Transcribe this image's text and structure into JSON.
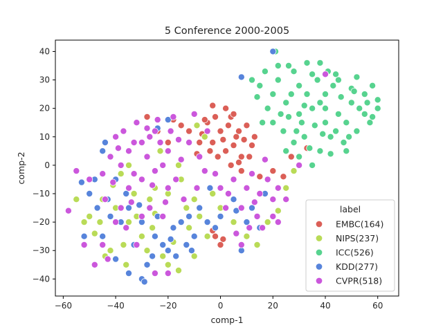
{
  "chart_data": {
    "type": "scatter",
    "title": "5 Conference 2000-2005",
    "xlabel": "comp-1",
    "ylabel": "comp-2",
    "xlim": [
      -63,
      68
    ],
    "ylim": [
      -46,
      44
    ],
    "xticks": [
      -60,
      -40,
      -20,
      0,
      20,
      40,
      60
    ],
    "yticks": [
      -40,
      -30,
      -20,
      -10,
      0,
      10,
      20,
      30,
      40
    ],
    "grid": false,
    "legend": {
      "title": "label",
      "placement": "lower-right"
    },
    "series": [
      {
        "name": "EMBC(164)",
        "color": "#db5f57",
        "points": [
          [
            -5,
            15
          ],
          [
            -3,
            8
          ],
          [
            0,
            12
          ],
          [
            2,
            5
          ],
          [
            4,
            17
          ],
          [
            6,
            10
          ],
          [
            8,
            3
          ],
          [
            -7,
            11
          ],
          [
            -2,
            17
          ],
          [
            3,
            14
          ],
          [
            5,
            7
          ],
          [
            7,
            12
          ],
          [
            9,
            9
          ],
          [
            -4,
            5
          ],
          [
            1,
            9
          ],
          [
            10,
            14
          ],
          [
            -6,
            16
          ],
          [
            2,
            20
          ],
          [
            12,
            7
          ],
          [
            -1,
            3
          ],
          [
            4,
            0
          ],
          [
            8,
            -2
          ],
          [
            15,
            -4
          ],
          [
            20,
            -2
          ],
          [
            24,
            -4
          ],
          [
            -12,
            12
          ],
          [
            -18,
            16
          ],
          [
            -24,
            12
          ],
          [
            -28,
            17
          ],
          [
            -20,
            8
          ],
          [
            -15,
            14
          ],
          [
            11,
            3
          ],
          [
            13,
            10
          ],
          [
            5,
            18
          ],
          [
            -8,
            8
          ],
          [
            33,
            6
          ],
          [
            27,
            3
          ],
          [
            -3,
            21
          ],
          [
            1,
            -26
          ],
          [
            -2,
            -25
          ],
          [
            0,
            -28
          ],
          [
            -5,
            -20
          ],
          [
            -3,
            -23
          ],
          [
            7,
            1
          ],
          [
            -9,
            4
          ]
        ]
      },
      {
        "name": "NIPS(237)",
        "color": "#b9db57",
        "points": [
          [
            -45,
            -12
          ],
          [
            -40,
            -15
          ],
          [
            -35,
            -20
          ],
          [
            -30,
            -25
          ],
          [
            -25,
            -8
          ],
          [
            -20,
            -10
          ],
          [
            -15,
            -5
          ],
          [
            -10,
            -12
          ],
          [
            -38,
            -3
          ],
          [
            -33,
            -10
          ],
          [
            -28,
            -30
          ],
          [
            -22,
            -32
          ],
          [
            -18,
            -27
          ],
          [
            -12,
            -22
          ],
          [
            -8,
            -18
          ],
          [
            -48,
            -24
          ],
          [
            -42,
            -30
          ],
          [
            -37,
            -28
          ],
          [
            -30,
            -5
          ],
          [
            -25,
            -17
          ],
          [
            -16,
            -37
          ],
          [
            -10,
            -32
          ],
          [
            -5,
            -25
          ],
          [
            -46,
            -20
          ],
          [
            -3,
            -10
          ],
          [
            0,
            -15
          ],
          [
            5,
            -20
          ],
          [
            10,
            -25
          ],
          [
            14,
            -28
          ],
          [
            -50,
            -18
          ],
          [
            -32,
            -18
          ],
          [
            -27,
            -12
          ],
          [
            -20,
            -35
          ],
          [
            -13,
            -15
          ],
          [
            -55,
            -12
          ],
          [
            -52,
            -20
          ],
          [
            -44,
            -32
          ],
          [
            28,
            -2
          ],
          [
            25,
            -8
          ],
          [
            -6,
            10
          ],
          [
            -9,
            14
          ],
          [
            18,
            -20
          ],
          [
            22,
            -16
          ],
          [
            -35,
            0
          ],
          [
            -23,
            5
          ],
          [
            -16,
            0
          ],
          [
            -41,
            -7
          ],
          [
            -36,
            -35
          ],
          [
            -26,
            -22
          ]
        ]
      },
      {
        "name": "ICC(526)",
        "color": "#57d38f",
        "points": [
          [
            22,
            30
          ],
          [
            26,
            35
          ],
          [
            30,
            28
          ],
          [
            35,
            32
          ],
          [
            40,
            25
          ],
          [
            45,
            30
          ],
          [
            50,
            27
          ],
          [
            55,
            25
          ],
          [
            60,
            23
          ],
          [
            25,
            22
          ],
          [
            30,
            18
          ],
          [
            35,
            20
          ],
          [
            40,
            15
          ],
          [
            45,
            18
          ],
          [
            50,
            22
          ],
          [
            55,
            18
          ],
          [
            24,
            12
          ],
          [
            28,
            8
          ],
          [
            32,
            10
          ],
          [
            36,
            14
          ],
          [
            42,
            10
          ],
          [
            47,
            8
          ],
          [
            52,
            12
          ],
          [
            57,
            15
          ],
          [
            20,
            25
          ],
          [
            18,
            20
          ],
          [
            15,
            28
          ],
          [
            12,
            30
          ],
          [
            20,
            15
          ],
          [
            25,
            5
          ],
          [
            30,
            3
          ],
          [
            38,
            5
          ],
          [
            42,
            4
          ],
          [
            48,
            5
          ],
          [
            53,
            20
          ],
          [
            58,
            28
          ],
          [
            60,
            20
          ],
          [
            33,
            25
          ],
          [
            38,
            22
          ],
          [
            43,
            28
          ],
          [
            28,
            33
          ],
          [
            33,
            36
          ],
          [
            38,
            36
          ],
          [
            44,
            32
          ],
          [
            16,
            15
          ],
          [
            22,
            35
          ],
          [
            21,
            40
          ],
          [
            35,
            0
          ],
          [
            40,
            20
          ],
          [
            27,
            25
          ],
          [
            31,
            15
          ],
          [
            26,
            17
          ],
          [
            48,
            15
          ],
          [
            52,
            31
          ],
          [
            56,
            22
          ],
          [
            44,
            12
          ],
          [
            37,
            30
          ],
          [
            23,
            18
          ],
          [
            29,
            12
          ],
          [
            34,
            6
          ],
          [
            39,
            11
          ],
          [
            46,
            24
          ],
          [
            17,
            33
          ],
          [
            14,
            24
          ],
          [
            51,
            26
          ],
          [
            58,
            17
          ],
          [
            49,
            10
          ],
          [
            41,
            33
          ],
          [
            32,
            21
          ]
        ]
      },
      {
        "name": "KDD(277)",
        "color": "#5784db",
        "points": [
          [
            -45,
            5
          ],
          [
            -40,
            -5
          ],
          [
            -35,
            -15
          ],
          [
            -30,
            -20
          ],
          [
            -25,
            -25
          ],
          [
            -20,
            -30
          ],
          [
            -15,
            -20
          ],
          [
            -10,
            -25
          ],
          [
            -50,
            -10
          ],
          [
            -48,
            -5
          ],
          [
            -45,
            -25
          ],
          [
            -40,
            -33
          ],
          [
            -35,
            -38
          ],
          [
            -30,
            -40
          ],
          [
            -28,
            -35
          ],
          [
            -22,
            -28
          ],
          [
            -18,
            -22
          ],
          [
            -12,
            -18
          ],
          [
            -8,
            -15
          ],
          [
            -5,
            -20
          ],
          [
            0,
            -18
          ],
          [
            5,
            -12
          ],
          [
            10,
            -20
          ],
          [
            15,
            -22
          ],
          [
            -52,
            -25
          ],
          [
            -38,
            -20
          ],
          [
            -33,
            -28
          ],
          [
            -26,
            -32
          ],
          [
            -17,
            -32
          ],
          [
            -13,
            -28
          ],
          [
            -42,
            -18
          ],
          [
            -47,
            -15
          ],
          [
            -53,
            -6
          ],
          [
            -44,
            8
          ],
          [
            -24,
            13
          ],
          [
            -20,
            16
          ],
          [
            8,
            -30
          ],
          [
            20,
            40
          ],
          [
            -4,
            -8
          ],
          [
            -2,
            -22
          ],
          [
            6,
            -16
          ],
          [
            -36,
            -10
          ],
          [
            -31,
            -14
          ],
          [
            -29,
            -41
          ],
          [
            8,
            31
          ],
          [
            -24,
            -18
          ],
          [
            -19,
            -26
          ],
          [
            -11,
            -30
          ],
          [
            -43,
            -12
          ],
          [
            12,
            -15
          ],
          [
            17,
            -10
          ]
        ]
      },
      {
        "name": "CVPR(518)",
        "color": "#cb57dc",
        "points": [
          [
            -40,
            10
          ],
          [
            -35,
            5
          ],
          [
            -30,
            8
          ],
          [
            -25,
            12
          ],
          [
            -20,
            5
          ],
          [
            -15,
            2
          ],
          [
            -38,
            0
          ],
          [
            -33,
            -3
          ],
          [
            -28,
            3
          ],
          [
            -22,
            0
          ],
          [
            -17,
            -5
          ],
          [
            -42,
            3
          ],
          [
            -37,
            12
          ],
          [
            -32,
            15
          ],
          [
            -27,
            10
          ],
          [
            -23,
            8
          ],
          [
            -19,
            12
          ],
          [
            -30,
            -5
          ],
          [
            -25,
            -2
          ],
          [
            -20,
            -8
          ],
          [
            -45,
            -3
          ],
          [
            -50,
            -5
          ],
          [
            -55,
            -2
          ],
          [
            -35,
            -8
          ],
          [
            -27,
            -15
          ],
          [
            -22,
            -18
          ],
          [
            -40,
            -20
          ],
          [
            -36,
            -22
          ],
          [
            -30,
            -18
          ],
          [
            -45,
            -28
          ],
          [
            5,
            -5
          ],
          [
            10,
            -8
          ],
          [
            15,
            -10
          ],
          [
            20,
            -12
          ],
          [
            8,
            -15
          ],
          [
            12,
            -3
          ],
          [
            18,
            -5
          ],
          [
            22,
            -8
          ],
          [
            25,
            -12
          ],
          [
            3,
            -10
          ],
          [
            -2,
            -3
          ],
          [
            0,
            -8
          ],
          [
            14,
            -18
          ],
          [
            20,
            -18
          ],
          [
            -58,
            -16
          ],
          [
            -52,
            -28
          ],
          [
            -48,
            -35
          ],
          [
            -43,
            -33
          ],
          [
            -38,
            -15
          ],
          [
            -32,
            -28
          ],
          [
            -25,
            -38
          ],
          [
            -20,
            -38
          ],
          [
            -10,
            18
          ],
          [
            -5,
            12
          ],
          [
            -18,
            17
          ],
          [
            -24,
            16
          ],
          [
            -28,
            13
          ],
          [
            -12,
            8
          ],
          [
            -14,
            -12
          ],
          [
            -9,
            -8
          ],
          [
            -6,
            -2
          ],
          [
            -8,
            3
          ],
          [
            8,
            -28
          ],
          [
            16,
            -22
          ],
          [
            22,
            -20
          ],
          [
            30,
            0
          ],
          [
            40,
            32
          ],
          [
            -33,
            8
          ],
          [
            -39,
            6
          ],
          [
            -26,
            -7
          ],
          [
            -16,
            9
          ],
          [
            -21,
            -13
          ],
          [
            -44,
            -12
          ],
          [
            -34,
            -13
          ],
          [
            -41,
            -6
          ],
          [
            2,
            -15
          ],
          [
            13,
            -13
          ],
          [
            17,
            2
          ],
          [
            11,
            -22
          ],
          [
            6,
            -24
          ]
        ]
      }
    ]
  }
}
